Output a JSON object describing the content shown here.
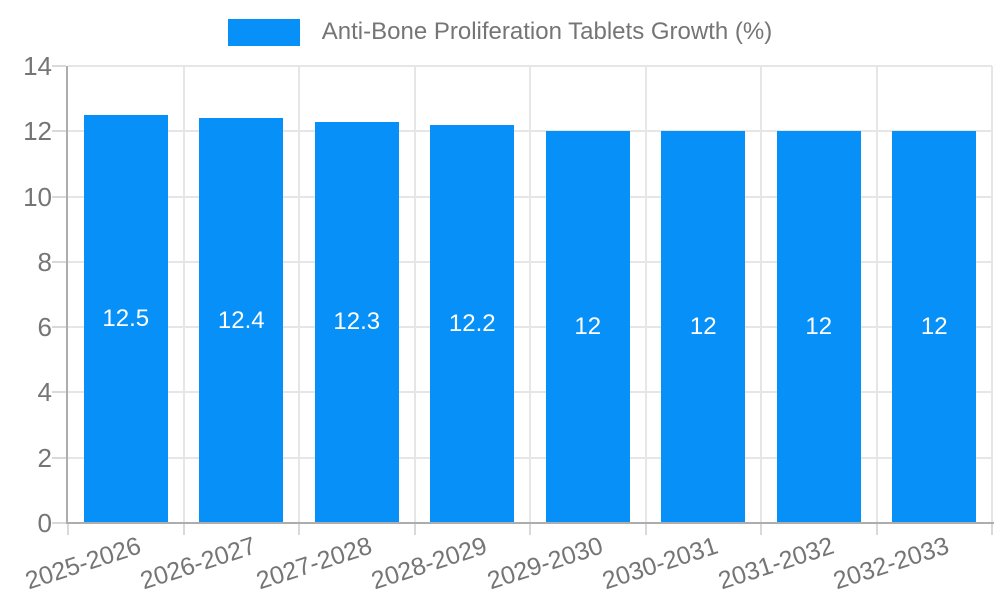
{
  "legend": {
    "label": "Anti-Bone Proliferation Tablets Growth (%)"
  },
  "colors": {
    "bar": "#0690F8",
    "grid": "#e6e6e6",
    "axis": "#adadad",
    "tick": "#d9d9d9",
    "text": "#757575",
    "bar_label": "#ffffff",
    "background": "#ffffff"
  },
  "chart_data": {
    "type": "bar",
    "title": "Anti-Bone Proliferation Tablets Growth (%)",
    "series": [
      {
        "name": "Anti-Bone Proliferation Tablets Growth (%)",
        "values": [
          12.5,
          12.4,
          12.3,
          12.2,
          12,
          12,
          12,
          12
        ],
        "value_labels": [
          "12.5",
          "12.4",
          "12.3",
          "12.2",
          "12",
          "12",
          "12",
          "12"
        ]
      }
    ],
    "categories": [
      "2025-2026",
      "2026-2027",
      "2027-2028",
      "2028-2029",
      "2029-2030",
      "2030-2031",
      "2031-2032",
      "2032-2033"
    ],
    "xlabel": "",
    "ylabel": "",
    "ylim": [
      0,
      14
    ],
    "yticks": [
      0,
      2,
      4,
      6,
      8,
      10,
      12,
      14
    ],
    "ytick_labels": [
      "0",
      "2",
      "4",
      "6",
      "8",
      "10",
      "12",
      "14"
    ],
    "grid": true,
    "legend_position": "top",
    "bar_label_position": "middle",
    "xlabel_rotation_deg": -18
  }
}
